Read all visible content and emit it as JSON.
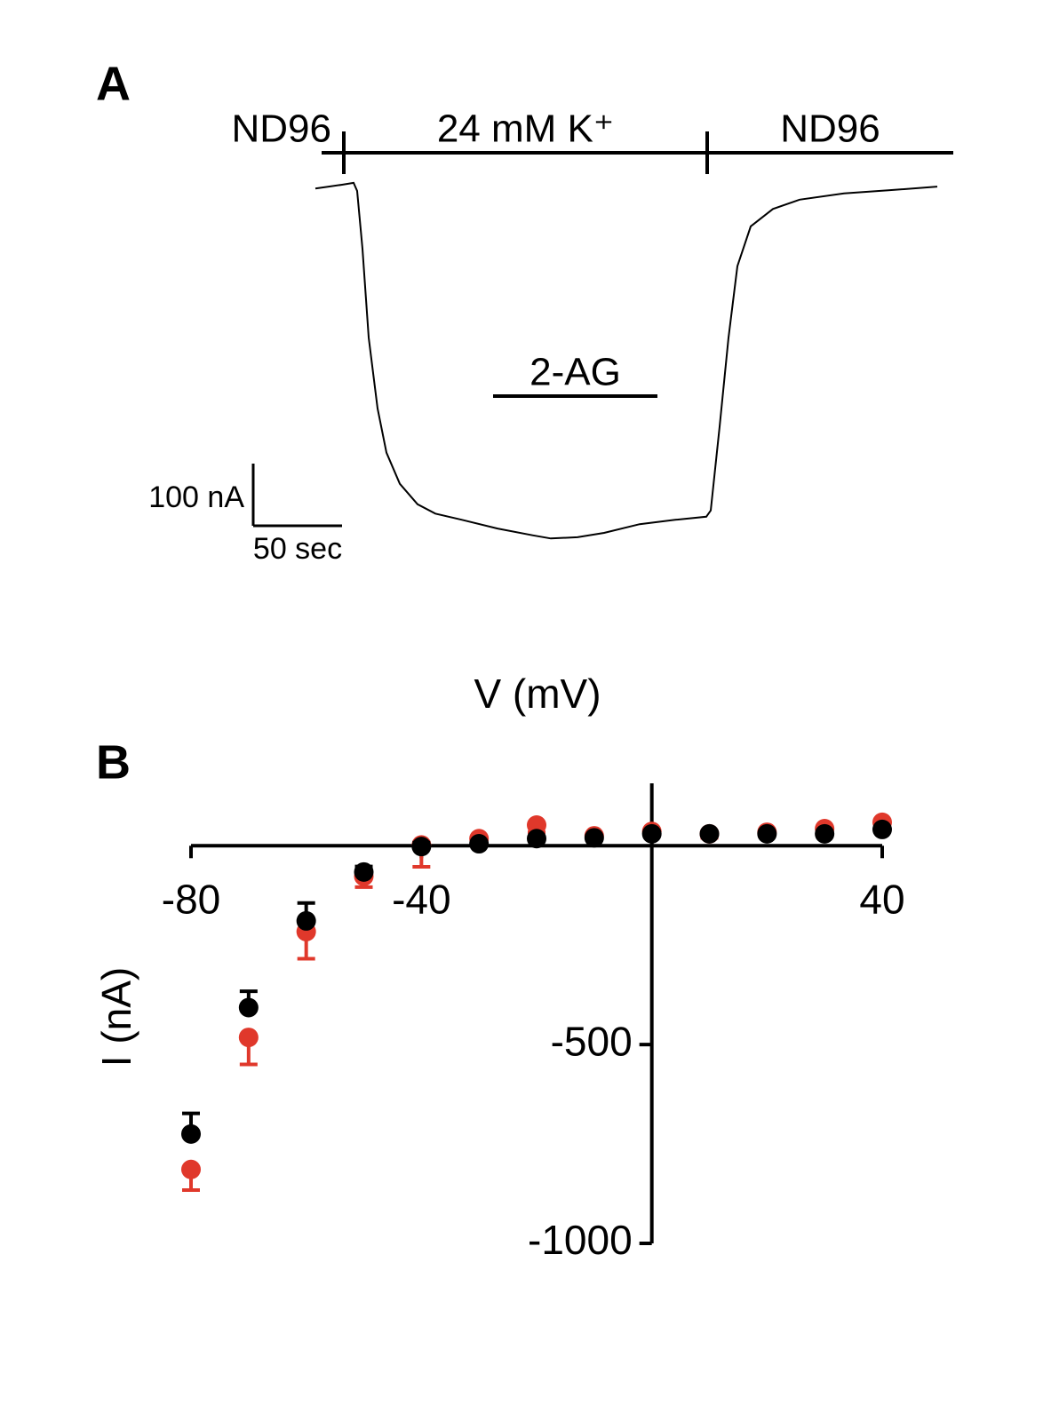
{
  "chart_data": [
    {
      "type": "line",
      "title": "A",
      "color": "#000000",
      "x": [
        0,
        7.5,
        15,
        21.5,
        23.5,
        26.5,
        30,
        35,
        40,
        47.5,
        57.5,
        67.5,
        82.5,
        102.5,
        122.5,
        132.5,
        147.5,
        162.5,
        182.5,
        202.5,
        220,
        222.5,
        227.5,
        232.5,
        237.5,
        245,
        257.5,
        272.5,
        297.5,
        322.5,
        350
      ],
      "values": [
        -6,
        -3,
        0,
        3,
        -10,
        -103,
        -246,
        -360,
        -431,
        -481,
        -514,
        -529,
        -539,
        -553,
        -564,
        -569,
        -567,
        -560,
        -546,
        -539,
        -534,
        -524,
        -389,
        -246,
        -131,
        -67,
        -39,
        -24,
        -14,
        -9,
        -3
      ],
      "solutions": [
        {
          "label": "ND96",
          "start": 3.5,
          "end": 16
        },
        {
          "label": "24 mM K⁺",
          "start": 16,
          "end": 220.5
        },
        {
          "label": "ND96",
          "start": 220.5,
          "end": 359
        }
      ],
      "treatments": [
        {
          "label": "2-AG",
          "start": 100,
          "end": 192.5
        }
      ],
      "scale_bars": {
        "y": {
          "value": 100,
          "label": "100 nA"
        },
        "x": {
          "value": 50,
          "label": "50 sec"
        }
      }
    },
    {
      "type": "scatter",
      "title": "B",
      "x_label": "V (mV)",
      "y_label": "I (nA)",
      "x": [
        -80,
        -70,
        -60,
        -50,
        -40,
        -30,
        -20,
        -10,
        0,
        10,
        20,
        30,
        40
      ],
      "xlim": [
        -80,
        40
      ],
      "ylim": [
        -1000,
        157
      ],
      "xticks": [
        -80,
        -40,
        40
      ],
      "yticks": [
        -500,
        -1000
      ],
      "series": [
        {
          "color": "#e0382b",
          "error_side": "down",
          "values": [
            -814,
            -482,
            -216,
            -77,
            2,
            18,
            52,
            25,
            36,
            30,
            34,
            43,
            59
          ],
          "errors": [
            52,
            68,
            68,
            27,
            55,
            18,
            18,
            10,
            10,
            10,
            10,
            10,
            10
          ]
        },
        {
          "color": "#000000",
          "error_side": "up",
          "values": [
            -725,
            -407,
            -189,
            -66,
            -2,
            5,
            18,
            20,
            30,
            30,
            30,
            30,
            41
          ],
          "errors": [
            52,
            41,
            45,
            14,
            10,
            5,
            5,
            5,
            5,
            5,
            5,
            5,
            5
          ]
        }
      ]
    }
  ]
}
